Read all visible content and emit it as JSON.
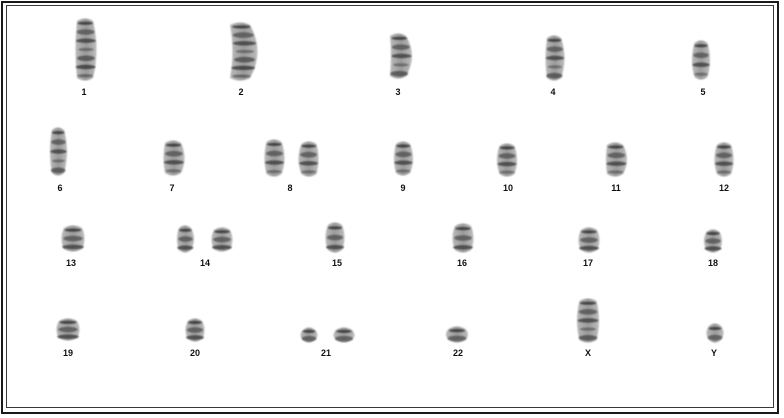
{
  "karyotype": {
    "chromosomes": [
      {
        "label": "1",
        "count": 1
      },
      {
        "label": "2",
        "count": 1
      },
      {
        "label": "3",
        "count": 1
      },
      {
        "label": "4",
        "count": 1
      },
      {
        "label": "5",
        "count": 1
      },
      {
        "label": "6",
        "count": 1
      },
      {
        "label": "7",
        "count": 1
      },
      {
        "label": "8",
        "count": 2
      },
      {
        "label": "9",
        "count": 1
      },
      {
        "label": "10",
        "count": 1
      },
      {
        "label": "11",
        "count": 1
      },
      {
        "label": "12",
        "count": 1
      },
      {
        "label": "13",
        "count": 1
      },
      {
        "label": "14",
        "count": 2
      },
      {
        "label": "15",
        "count": 1
      },
      {
        "label": "16",
        "count": 1
      },
      {
        "label": "17",
        "count": 1
      },
      {
        "label": "18",
        "count": 1
      },
      {
        "label": "19",
        "count": 1
      },
      {
        "label": "20",
        "count": 1
      },
      {
        "label": "21",
        "count": 2
      },
      {
        "label": "22",
        "count": 1
      },
      {
        "label": "X",
        "count": 1
      },
      {
        "label": "Y",
        "count": 1
      }
    ]
  }
}
